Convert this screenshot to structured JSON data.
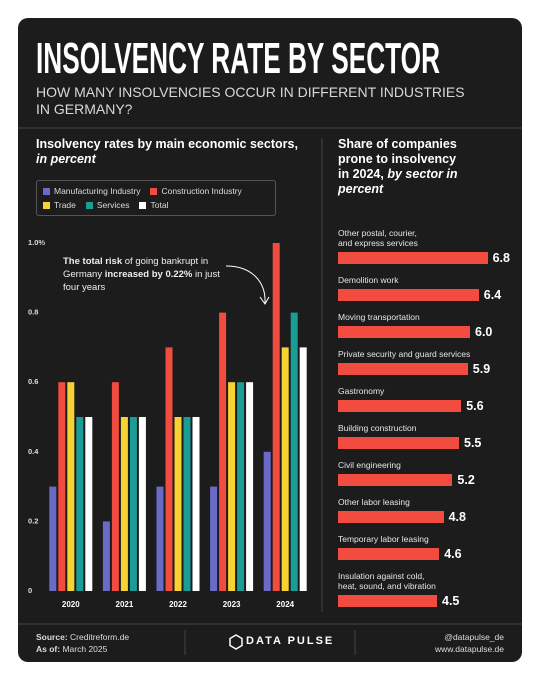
{
  "header": {
    "title": "INSOLVENCY RATE BY SECTOR",
    "subtitle": "HOW MANY INSOLVENCIES OCCUR IN DIFFERENT INDUSTRIES IN GERMANY?"
  },
  "chart_data": [
    {
      "type": "bar",
      "title": "Insolvency rates by main economic sectors,",
      "subtitle": "in percent",
      "categories": [
        "2020",
        "2021",
        "2022",
        "2023",
        "2024"
      ],
      "series": [
        {
          "name": "Manufacturing Industry",
          "color": "#6a6ac8",
          "values": [
            0.3,
            0.2,
            0.3,
            0.3,
            0.4
          ]
        },
        {
          "name": "Construction Industry",
          "color": "#f24b3f",
          "values": [
            0.6,
            0.6,
            0.7,
            0.8,
            1.0
          ]
        },
        {
          "name": "Trade",
          "color": "#f7d233",
          "values": [
            0.6,
            0.5,
            0.5,
            0.6,
            0.7
          ]
        },
        {
          "name": "Services",
          "color": "#1a9c97",
          "values": [
            0.5,
            0.5,
            0.5,
            0.6,
            0.8
          ]
        },
        {
          "name": "Total",
          "color": "#ffffff",
          "values": [
            0.5,
            0.5,
            0.5,
            0.6,
            0.7
          ]
        }
      ],
      "ylim": [
        0,
        1.0
      ],
      "yticks": [
        0,
        0.2,
        0.4,
        0.6,
        0.8,
        {
          "value": 1.0,
          "label": "1.0%"
        }
      ],
      "annotation": [
        {
          "text": "The total risk",
          "bold": true
        },
        {
          "text": " of going bankrupt in Germany ",
          "bold": false
        },
        {
          "text": "increased by 0.22%",
          "bold": true
        },
        {
          "text": " in just four years",
          "bold": false
        }
      ]
    },
    {
      "type": "hbar",
      "title": "Share of companies prone to insolvency in 2024,",
      "subtitle": "by sector in percent",
      "categories": [
        "Other postal, courier,\nand express services",
        "Demolition work",
        "Moving transportation",
        "Private security and guard services",
        "Gastronomy",
        "Building construction",
        "Civil engineering",
        "Other labor leasing",
        "Temporary labor leasing",
        "Insulation against cold,\nheat, sound, and vibration"
      ],
      "values": [
        6.8,
        6.4,
        6.0,
        5.9,
        5.6,
        5.5,
        5.2,
        4.8,
        4.6,
        4.5
      ],
      "value_labels": [
        "6.8",
        "6.4",
        "6.0",
        "5.9",
        "5.6",
        "5.5",
        "5.2",
        "4.8",
        "4.6",
        "4.5"
      ],
      "color": "#f24b3f"
    }
  ],
  "footer": {
    "source_label": "Source:",
    "source": "Creditreform.de",
    "as_of_label": "As of:",
    "as_of": "March 2025",
    "brand": "DATA PULSE",
    "handle": "@datapulse_de",
    "website": "www.datapulse.de"
  }
}
